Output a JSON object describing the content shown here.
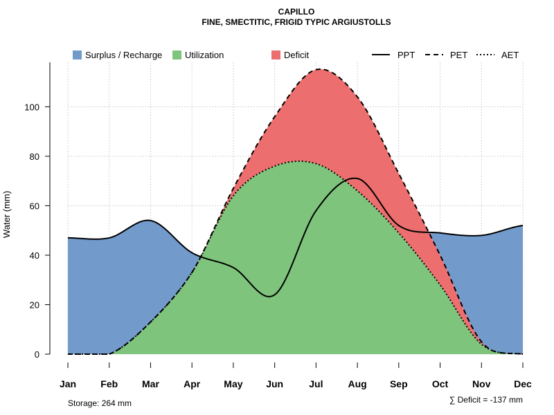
{
  "chart_data": {
    "type": "area",
    "title": "CAPILLO",
    "subtitle": "FINE, SMECTITIC, FRIGID TYPIC ARGIUSTOLLS",
    "xlabel": "",
    "ylabel": "Water (mm)",
    "categories": [
      "Jan",
      "Feb",
      "Mar",
      "Apr",
      "May",
      "Jun",
      "Jul",
      "Aug",
      "Sep",
      "Oct",
      "Nov",
      "Dec"
    ],
    "ylim": [
      0,
      118
    ],
    "yticks": [
      0,
      20,
      40,
      60,
      80,
      100
    ],
    "grid": true,
    "legend_position": "top",
    "legend": {
      "areas": [
        {
          "key": "surplus",
          "label": "Surplus / Recharge",
          "color": "#729acb"
        },
        {
          "key": "utilization",
          "label": "Utilization",
          "color": "#7fc47c"
        },
        {
          "key": "deficit",
          "label": "Deficit",
          "color": "#ec6e6e"
        }
      ],
      "lines": [
        {
          "key": "ppt",
          "label": "PPT",
          "dash": "solid"
        },
        {
          "key": "pet",
          "label": "PET",
          "dash": "dashed"
        },
        {
          "key": "aet",
          "label": "AET",
          "dash": "dotted"
        }
      ]
    },
    "series": [
      {
        "name": "PPT",
        "values": [
          47,
          47,
          54,
          41,
          35,
          24,
          58,
          71,
          52,
          49,
          48,
          52
        ]
      },
      {
        "name": "PET",
        "values": [
          0,
          0,
          13,
          33,
          67,
          96,
          115,
          104,
          73,
          40,
          5,
          0
        ]
      },
      {
        "name": "AET",
        "values": [
          0,
          0,
          13,
          33,
          64,
          76,
          77,
          66,
          49,
          28,
          4,
          0
        ]
      }
    ],
    "annotations": {
      "storage": "Storage: 264 mm",
      "deficit": "∑ Deficit = -137 mm"
    }
  },
  "colors": {
    "surplus": "#729acb",
    "utilization": "#7fc47c",
    "deficit": "#ec6e6e",
    "grid": "#d3d3d3",
    "axis": "#000000"
  }
}
